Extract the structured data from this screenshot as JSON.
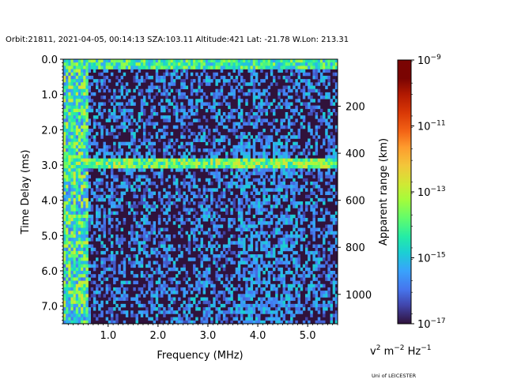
{
  "chart_data": {
    "type": "heatmap",
    "title": "Orbit:21811, 2021-04-05, 00:14:13 SZA:103.11 Altitude:421 Lat: -21.78 W.Lon: 213.31",
    "xlabel": "Frequency (MHz)",
    "ylabel": "Time Delay (ms)",
    "y2label": "Apparent range (km)",
    "xlim": [
      0.1,
      5.6
    ],
    "ylim": [
      7.5,
      0.0
    ],
    "x_ticks": [
      1.0,
      2.0,
      3.0,
      4.0,
      5.0
    ],
    "x_tick_labels": [
      "1.0",
      "2.0",
      "3.0",
      "4.0",
      "5.0"
    ],
    "y_ticks": [
      0.0,
      1.0,
      2.0,
      3.0,
      4.0,
      5.0,
      6.0,
      7.0
    ],
    "y_tick_labels": [
      "0.0",
      "1.0",
      "2.0",
      "3.0",
      "4.0",
      "5.0",
      "6.0",
      "7.0"
    ],
    "y2_ticks_km": [
      200,
      400,
      600,
      800,
      1000
    ],
    "y2_tick_labels": [
      "200",
      "400",
      "600",
      "800",
      "1000"
    ],
    "km_per_ms": 150,
    "colorbar": {
      "label": "v² m⁻² Hz⁻¹",
      "scale": "log",
      "min_exp": -17,
      "max_exp": -9,
      "ticks_exp": [
        -17,
        -15,
        -13,
        -11,
        -9
      ],
      "tick_labels": [
        "10",
        "10",
        "10",
        "10",
        "10"
      ],
      "tick_exponents": [
        "−17",
        "−15",
        "−13",
        "−11",
        "−9"
      ],
      "colormap": "turbo"
    },
    "features": {
      "low_frequency_cutoff_mhz": 0.6,
      "surface_reflection_delay_ms": 2.95,
      "ionospheric_trace_top_delay_ms": 0.3,
      "ionospheric_trace_freq_range_mhz": [
        0.1,
        5.6
      ],
      "background_log_level": -17
    }
  },
  "credit": "Uni of LEICESTER"
}
